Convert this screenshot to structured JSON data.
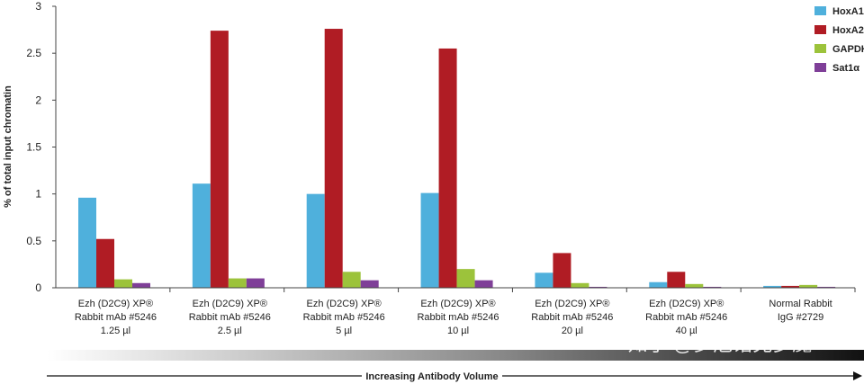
{
  "chart_data": {
    "type": "bar",
    "ylabel": "% of total input chromatin",
    "xlabel": "Increasing Antibody Volume",
    "ylim": [
      0,
      3
    ],
    "yticks": [
      "0",
      "0.5",
      "1",
      "1.5",
      "2",
      "2.5",
      "3"
    ],
    "ytick_values": [
      0,
      0.5,
      1,
      1.5,
      2,
      2.5,
      3
    ],
    "legend_position": "top-right",
    "categories": [
      [
        "Ezh (D2C9) XP®",
        "Rabbit mAb #5246",
        "1.25 µl"
      ],
      [
        "Ezh (D2C9) XP®",
        "Rabbit mAb #5246",
        "2.5 µl"
      ],
      [
        "Ezh (D2C9) XP®",
        "Rabbit mAb #5246",
        "5 µl"
      ],
      [
        "Ezh (D2C9) XP®",
        "Rabbit mAb #5246",
        "10 µl"
      ],
      [
        "Ezh (D2C9) XP®",
        "Rabbit mAb #5246",
        "20 µl"
      ],
      [
        "Ezh (D2C9) XP®",
        "Rabbit mAb #5246",
        "40 µl"
      ],
      [
        "Normal Rabbit",
        "IgG #2729"
      ]
    ],
    "series": [
      {
        "name": "HoxA1",
        "color": "#4fb0dc",
        "values": [
          0.96,
          1.11,
          1.0,
          1.01,
          0.16,
          0.06,
          0.02
        ]
      },
      {
        "name": "HoxA2",
        "color": "#b01c24",
        "values": [
          0.52,
          2.74,
          2.76,
          2.55,
          0.37,
          0.17,
          0.02
        ]
      },
      {
        "name": "GAPDH",
        "color": "#9cc33b",
        "values": [
          0.09,
          0.1,
          0.17,
          0.2,
          0.05,
          0.04,
          0.03
        ]
      },
      {
        "name": "Sat1α",
        "color": "#7f3f98",
        "values": [
          0.05,
          0.1,
          0.08,
          0.08,
          0.01,
          0.01,
          0.01
        ]
      }
    ]
  },
  "watermark": "知乎 @罗厄诺克梦魇"
}
